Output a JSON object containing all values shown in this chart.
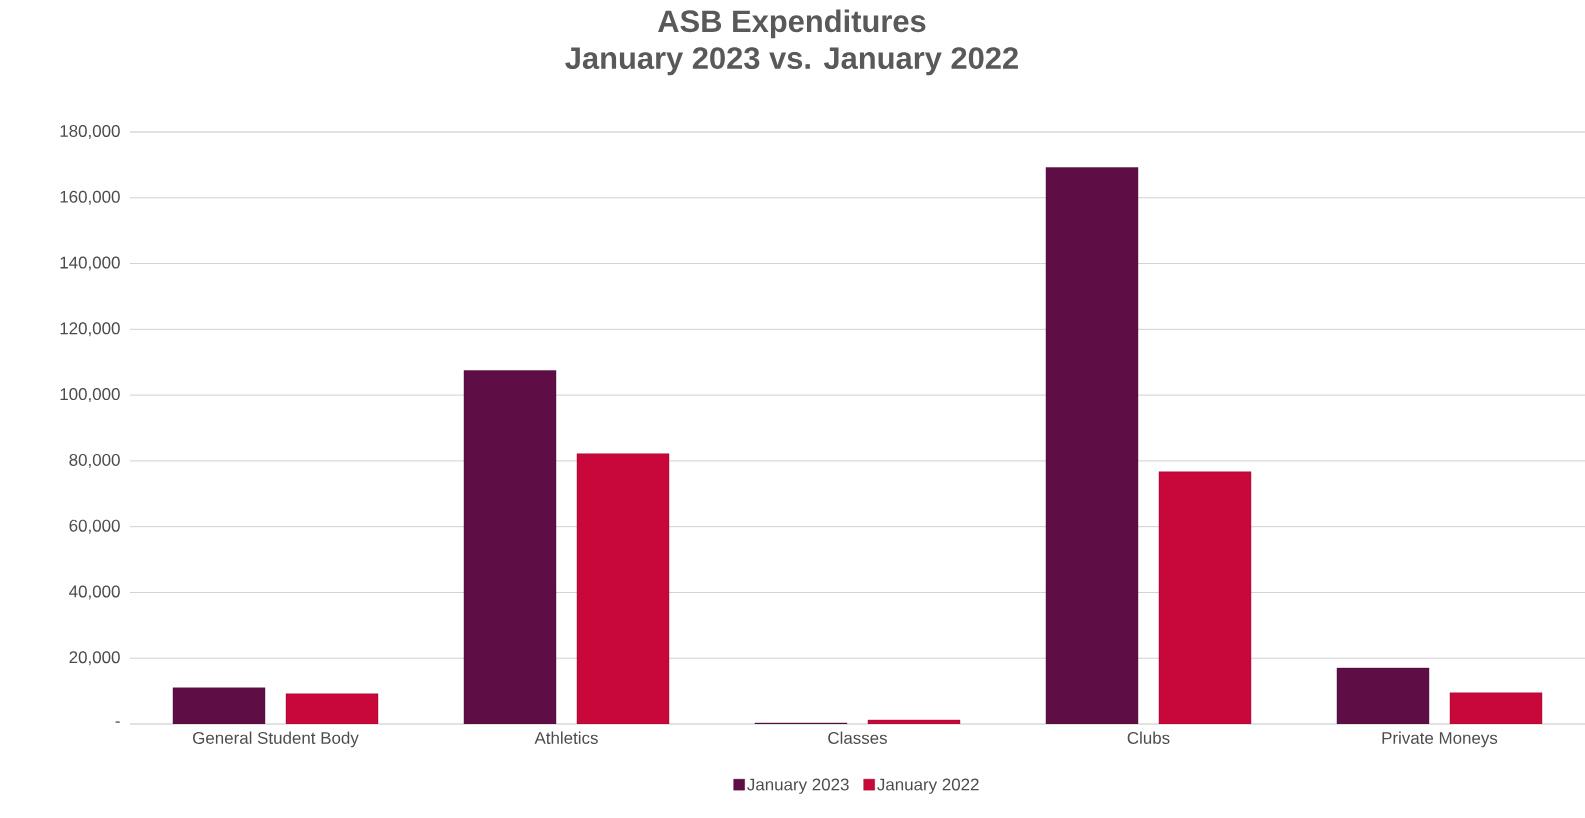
{
  "chart_data": {
    "type": "bar",
    "title": "ASB Expenditures",
    "subtitle": "January 2023 vs. January 2022",
    "categories": [
      "General Student Body",
      "Athletics",
      "Classes",
      "Clubs",
      "Private Moneys"
    ],
    "series": [
      {
        "name": "January 2023",
        "color": "#5e0e45",
        "values": [
          11000,
          107500,
          300,
          169200,
          17000
        ]
      },
      {
        "name": "January 2022",
        "color": "#c8073b",
        "values": [
          9200,
          82200,
          1200,
          76700,
          9500
        ]
      }
    ],
    "ylim": [
      0,
      180000
    ],
    "yticks": [
      {
        "value": 0,
        "label": "-"
      },
      {
        "value": 20000,
        "label": "20,000"
      },
      {
        "value": 40000,
        "label": "40,000"
      },
      {
        "value": 60000,
        "label": "60,000"
      },
      {
        "value": 80000,
        "label": "80,000"
      },
      {
        "value": 100000,
        "label": "100,000"
      },
      {
        "value": 120000,
        "label": "120,000"
      },
      {
        "value": 140000,
        "label": "140,000"
      },
      {
        "value": 160000,
        "label": "160,000"
      },
      {
        "value": 180000,
        "label": "180,000"
      }
    ],
    "grid": "y",
    "legend": "bottom"
  }
}
